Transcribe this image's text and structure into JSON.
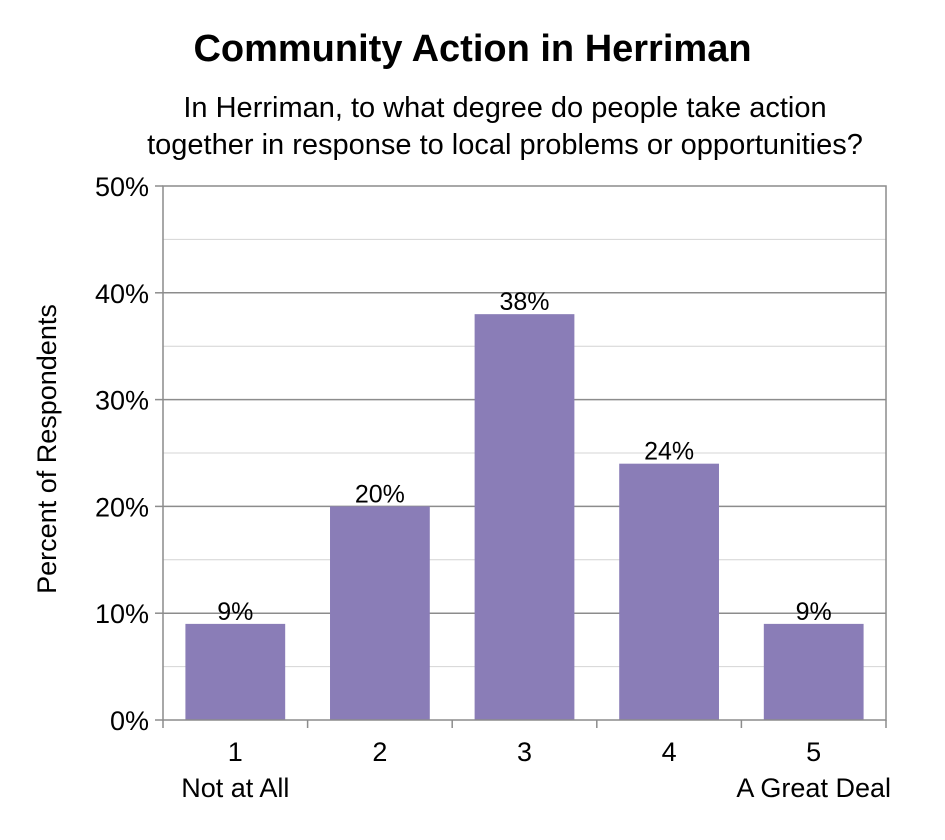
{
  "chart_data": {
    "type": "bar",
    "title": "Community Action in Herriman",
    "subtitle_lines": [
      "In Herriman, to what degree do people take action",
      "together in response to local problems or opportunities?"
    ],
    "ylabel": "Percent of Respondents",
    "xlabel": "",
    "categories": [
      "1",
      "2",
      "3",
      "4",
      "5"
    ],
    "category_sublabels": [
      "Not at All",
      "",
      "",
      "",
      "A Great Deal"
    ],
    "values": [
      9,
      20,
      38,
      24,
      9
    ],
    "data_labels": [
      "9%",
      "20%",
      "38%",
      "24%",
      "9%"
    ],
    "ylim": [
      0,
      50
    ],
    "yticks": [
      0,
      10,
      20,
      30,
      40,
      50
    ],
    "ytick_labels": [
      "0%",
      "10%",
      "20%",
      "30%",
      "40%",
      "50%"
    ],
    "grid": true,
    "legend": "none",
    "bar_color": "#8a7db7"
  }
}
